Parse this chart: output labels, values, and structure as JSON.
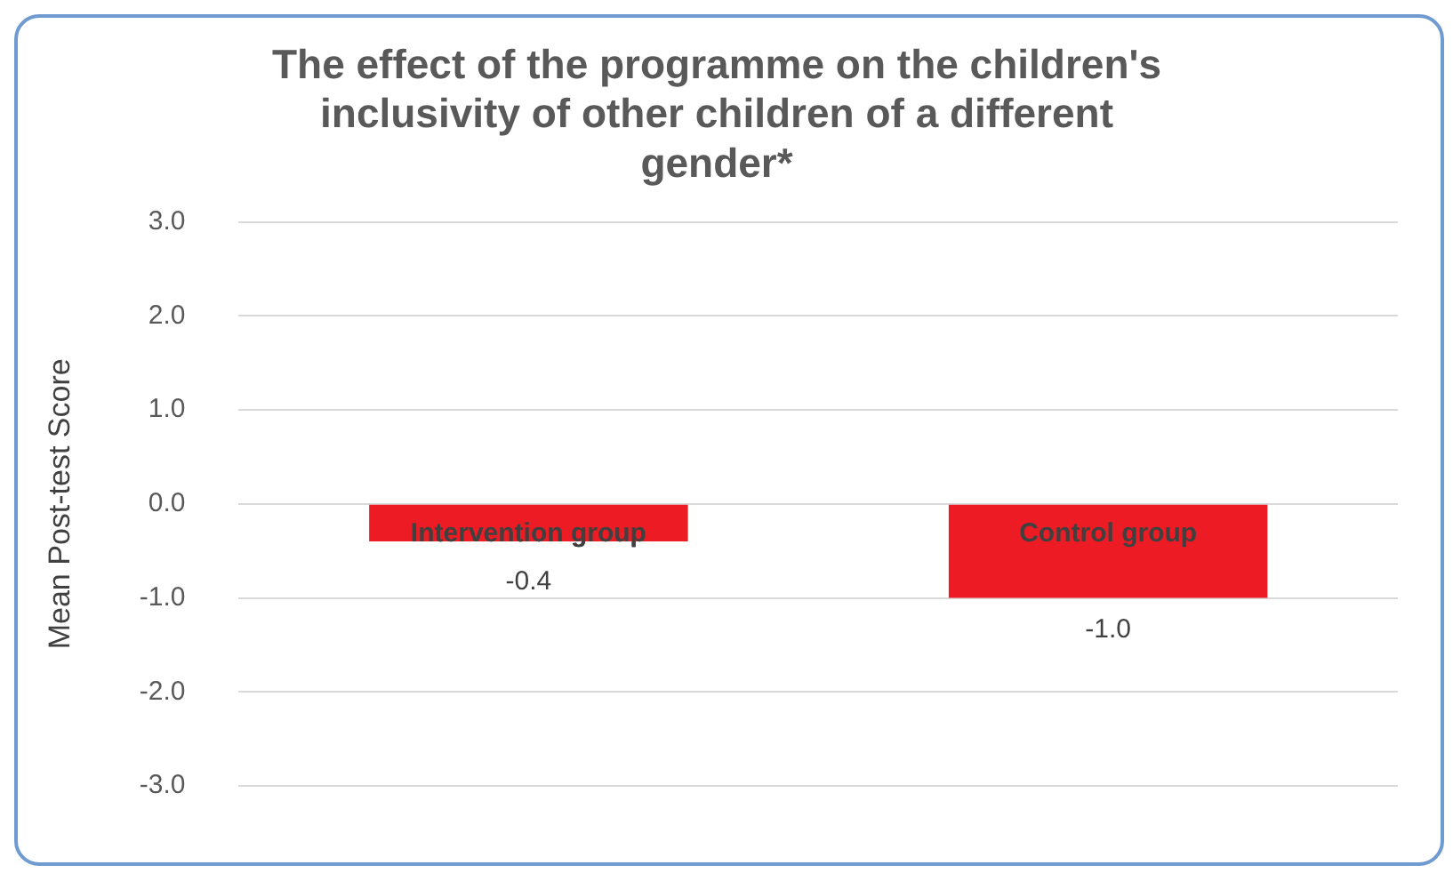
{
  "chart_data": {
    "type": "bar",
    "title": "The effect of the programme on the children's inclusivity of other children of a different gender*",
    "ylabel": "Mean Post-test Score",
    "categories": [
      "Intervention group",
      "Control group"
    ],
    "values": [
      -0.4,
      -1.0
    ],
    "color": "#ed1c24",
    "value_labels": [
      "-0.4",
      "-1.0"
    ],
    "ylim": [
      -3,
      3
    ],
    "yticks": [
      {
        "value": -3,
        "label": "-3.0"
      },
      {
        "value": -2,
        "label": "-2.0"
      },
      {
        "value": -1,
        "label": "-1.0"
      },
      {
        "value": 0,
        "label": "0.0"
      },
      {
        "value": 1,
        "label": "1.0"
      },
      {
        "value": 2,
        "label": "2.0"
      },
      {
        "value": 3,
        "label": "3.0"
      }
    ],
    "grid": "y",
    "legend": false
  }
}
